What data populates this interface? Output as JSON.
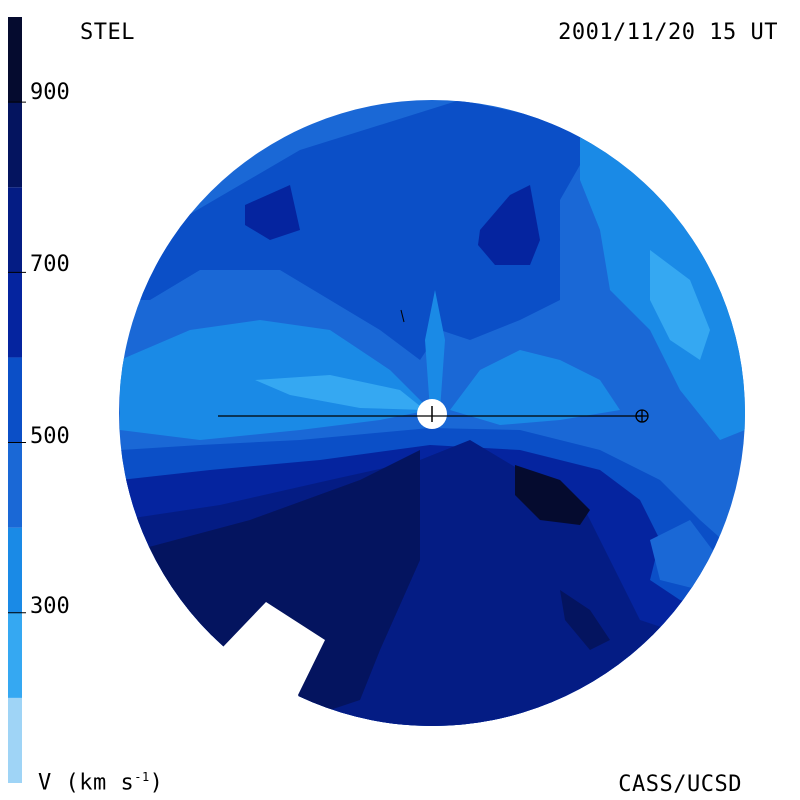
{
  "header": {
    "left_title": "STEL",
    "right_title": "2001/11/20 15 UT"
  },
  "footer": {
    "left_label_prefix": "V (km s",
    "left_label_exp": "-1",
    "left_label_suffix": ")",
    "right_label": "CASS/UCSD"
  },
  "colorbar": {
    "tick_values": [
      "900",
      "700",
      "500",
      "300"
    ],
    "levels": [
      {
        "min": 100,
        "max": 200,
        "color": "#9fd4f6"
      },
      {
        "min": 200,
        "max": 300,
        "color": "#35a8f2"
      },
      {
        "min": 300,
        "max": 400,
        "color": "#1a8ae6"
      },
      {
        "min": 400,
        "max": 500,
        "color": "#1a68d6"
      },
      {
        "min": 500,
        "max": 600,
        "color": "#0b4fc7"
      },
      {
        "min": 600,
        "max": 700,
        "color": "#05249f"
      },
      {
        "min": 700,
        "max": 800,
        "color": "#041c84"
      },
      {
        "min": 800,
        "max": 900,
        "color": "#04145f"
      },
      {
        "min": 900,
        "max": 1000,
        "color": "#050b2f"
      }
    ]
  },
  "map": {
    "sun_symbol": "sun-icon",
    "earth_symbol": "earth-icon"
  }
}
